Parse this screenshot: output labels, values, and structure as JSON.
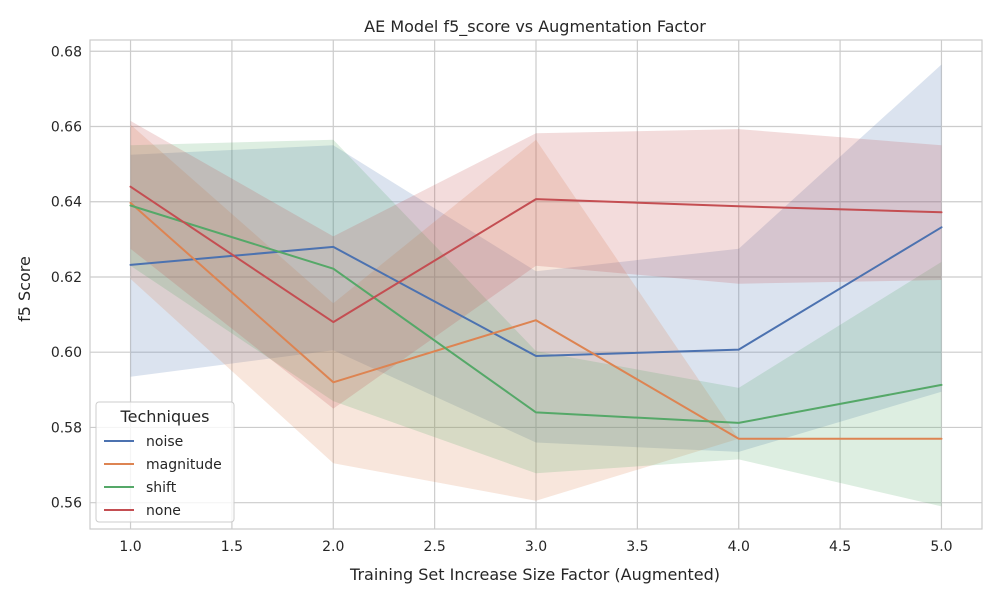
{
  "chart_data": {
    "type": "line",
    "title": "AE Model f5_score vs Augmentation Factor",
    "xlabel": "Training Set Increase Size Factor (Augmented)",
    "ylabel": "f5 Score",
    "xlim": [
      0.8,
      5.2
    ],
    "ylim": [
      0.553,
      0.683
    ],
    "xticks": [
      1.0,
      1.5,
      2.0,
      2.5,
      3.0,
      3.5,
      4.0,
      4.5,
      5.0
    ],
    "xtick_labels": [
      "1.0",
      "1.5",
      "2.0",
      "2.5",
      "3.0",
      "3.5",
      "4.0",
      "4.5",
      "5.0"
    ],
    "yticks": [
      0.56,
      0.58,
      0.6,
      0.62,
      0.64,
      0.66,
      0.68
    ],
    "ytick_labels": [
      "0.56",
      "0.58",
      "0.60",
      "0.62",
      "0.64",
      "0.66",
      "0.68"
    ],
    "grid": true,
    "legend": {
      "title": "Techniques",
      "position": "lower-left"
    },
    "x": [
      1,
      2,
      3,
      4,
      5
    ],
    "series": [
      {
        "name": "noise",
        "color": "#4c72b0",
        "values": [
          0.6232,
          0.628,
          0.599,
          0.6007,
          0.6332
        ],
        "lower": [
          0.5935,
          0.6005,
          0.576,
          0.5735,
          0.5895
        ],
        "upper": [
          0.6525,
          0.655,
          0.6215,
          0.6275,
          0.6765
        ]
      },
      {
        "name": "magnitude",
        "color": "#dd8452",
        "values": [
          0.6397,
          0.592,
          0.6085,
          0.577,
          0.577
        ],
        "lower": [
          0.6195,
          0.5705,
          0.5605,
          0.577,
          0.577
        ],
        "upper": [
          0.6605,
          0.613,
          0.6565,
          0.577,
          0.577
        ]
      },
      {
        "name": "shift",
        "color": "#55a868",
        "values": [
          0.639,
          0.6222,
          0.584,
          0.5812,
          0.5913
        ],
        "lower": [
          0.623,
          0.587,
          0.5678,
          0.5715,
          0.559
        ],
        "upper": [
          0.655,
          0.6565,
          0.6003,
          0.5905,
          0.624
        ]
      },
      {
        "name": "none",
        "color": "#c44e52",
        "values": [
          0.644,
          0.608,
          0.6407,
          0.6388,
          0.6372
        ],
        "lower": [
          0.6275,
          0.585,
          0.623,
          0.6182,
          0.6192
        ],
        "upper": [
          0.6615,
          0.6308,
          0.6582,
          0.6593,
          0.655
        ]
      }
    ]
  }
}
